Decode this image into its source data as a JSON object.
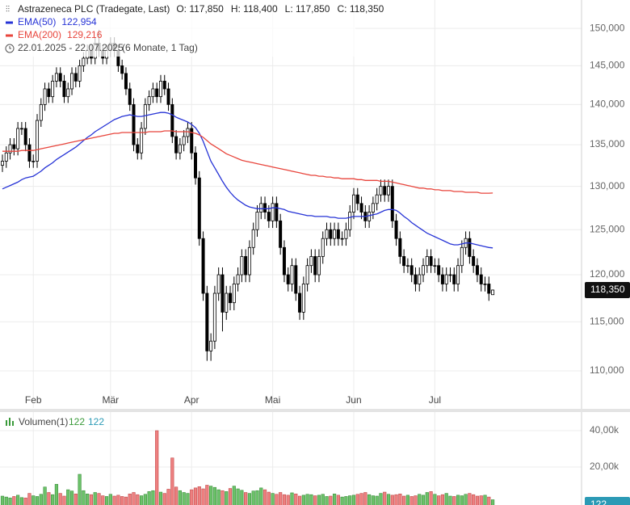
{
  "chart_data": {
    "type": "candlestick",
    "title": "Astrazeneca PLC (Tradegate, Last)",
    "quote": [
      "O: 117,850",
      "H: 118,400",
      "L: 117,850",
      "C: 118,350"
    ],
    "date_range": "22.01.2025 - 22.07.2025",
    "period": "(6 Monate, 1 Tag)",
    "log_scale": true,
    "grid": true,
    "up_fill": "#ffffff",
    "down_fill": "#000000",
    "candle_color": "#000000",
    "ylim": [
      106200,
      153900
    ],
    "yticks": [
      {
        "value": 110000,
        "label": "110,000"
      },
      {
        "value": 115000,
        "label": "115,000"
      },
      {
        "value": 120000,
        "label": "120,000"
      },
      {
        "value": 125000,
        "label": "125,000"
      },
      {
        "value": 130000,
        "label": "130,000"
      },
      {
        "value": 135000,
        "label": "135,000"
      },
      {
        "value": 140000,
        "label": "140,000"
      },
      {
        "value": 145000,
        "label": "145,000"
      },
      {
        "value": 150000,
        "label": "150,000"
      }
    ],
    "xticks": [
      {
        "value": 8,
        "label": "Feb"
      },
      {
        "value": 28,
        "label": "Mär"
      },
      {
        "value": 49,
        "label": "Apr"
      },
      {
        "value": 70,
        "label": "Mai"
      },
      {
        "value": 91,
        "label": "Jun"
      },
      {
        "value": 112,
        "label": "Jul"
      }
    ],
    "last_label": "118,350",
    "candles": [
      [
        132500,
        133800,
        131700,
        133000
      ],
      [
        133000,
        134800,
        132200,
        134000
      ],
      [
        134000,
        135800,
        133200,
        135000
      ],
      [
        135000,
        135800,
        133700,
        134500
      ],
      [
        134500,
        137800,
        133700,
        137000
      ],
      [
        137000,
        137800,
        136200,
        137000
      ],
      [
        137000,
        137800,
        134200,
        135000
      ],
      [
        135000,
        135800,
        132200,
        133000
      ],
      [
        133000,
        133800,
        132200,
        133000
      ],
      [
        133000,
        138800,
        132200,
        138000
      ],
      [
        138000,
        140800,
        137200,
        140000
      ],
      [
        140000,
        142800,
        139200,
        142000
      ],
      [
        142000,
        142800,
        140200,
        141000
      ],
      [
        141000,
        143800,
        140200,
        143000
      ],
      [
        143000,
        144800,
        142200,
        144000
      ],
      [
        144000,
        144800,
        142200,
        143000
      ],
      [
        143000,
        143800,
        140200,
        141000
      ],
      [
        141000,
        142800,
        140200,
        142000
      ],
      [
        142000,
        144800,
        141200,
        144000
      ],
      [
        144000,
        144800,
        142200,
        143000
      ],
      [
        143000,
        145800,
        142200,
        145000
      ],
      [
        145000,
        146800,
        144200,
        146000
      ],
      [
        146000,
        147800,
        145200,
        147000
      ],
      [
        147000,
        147800,
        145200,
        146000
      ],
      [
        146000,
        148800,
        145200,
        148000
      ],
      [
        148000,
        149800,
        146200,
        147000
      ],
      [
        147000,
        147800,
        145200,
        146000
      ],
      [
        146000,
        147800,
        145200,
        147000
      ],
      [
        147000,
        148800,
        146200,
        148000
      ],
      [
        148000,
        148800,
        146200,
        147000
      ],
      [
        147000,
        147800,
        144200,
        145000
      ],
      [
        145000,
        145800,
        143200,
        144000
      ],
      [
        144000,
        144800,
        141200,
        142000
      ],
      [
        142000,
        142800,
        139200,
        140000
      ],
      [
        140000,
        140800,
        134200,
        135000
      ],
      [
        135000,
        135800,
        133200,
        134000
      ],
      [
        134000,
        137800,
        133200,
        137000
      ],
      [
        137000,
        140800,
        136200,
        140000
      ],
      [
        140000,
        141800,
        139200,
        141000
      ],
      [
        141000,
        142800,
        140200,
        142000
      ],
      [
        142000,
        142800,
        140200,
        141000
      ],
      [
        141000,
        143800,
        140200,
        143000
      ],
      [
        143000,
        143800,
        141200,
        142000
      ],
      [
        142000,
        142800,
        139200,
        140000
      ],
      [
        140000,
        140800,
        135200,
        136000
      ],
      [
        136000,
        136800,
        133200,
        134000
      ],
      [
        134000,
        135800,
        133200,
        135000
      ],
      [
        135000,
        136800,
        134200,
        136000
      ],
      [
        136000,
        137800,
        135200,
        137000
      ],
      [
        137000,
        137800,
        133200,
        134000
      ],
      [
        134000,
        134800,
        130200,
        131000
      ],
      [
        131000,
        131800,
        123200,
        124000
      ],
      [
        124000,
        124800,
        117200,
        118000
      ],
      [
        118000,
        118800,
        111000,
        112000
      ],
      [
        112000,
        113800,
        111000,
        113000
      ],
      [
        113000,
        118800,
        112200,
        118000
      ],
      [
        118000,
        120800,
        117200,
        120000
      ],
      [
        120000,
        120800,
        114000,
        116000
      ],
      [
        116000,
        118800,
        115200,
        118000
      ],
      [
        118000,
        118800,
        116200,
        117000
      ],
      [
        117000,
        119800,
        116200,
        119000
      ],
      [
        119000,
        120800,
        118200,
        120000
      ],
      [
        120000,
        122800,
        119200,
        122000
      ],
      [
        122000,
        122800,
        119200,
        120000
      ],
      [
        120000,
        123800,
        119200,
        123000
      ],
      [
        123000,
        125800,
        122200,
        125000
      ],
      [
        125000,
        127800,
        124200,
        127000
      ],
      [
        127000,
        128800,
        126200,
        128000
      ],
      [
        128000,
        128800,
        126200,
        127000
      ],
      [
        127000,
        127800,
        125200,
        126000
      ],
      [
        126000,
        128800,
        125200,
        128000
      ],
      [
        128000,
        128800,
        125200,
        126000
      ],
      [
        126000,
        126800,
        122200,
        123000
      ],
      [
        123000,
        123800,
        119200,
        120000
      ],
      [
        120000,
        120800,
        118200,
        119000
      ],
      [
        119000,
        121800,
        118200,
        121000
      ],
      [
        121000,
        121800,
        117200,
        118000
      ],
      [
        118000,
        118800,
        115200,
        116000
      ],
      [
        116000,
        119800,
        115200,
        119000
      ],
      [
        119000,
        121800,
        118200,
        121000
      ],
      [
        121000,
        122800,
        120200,
        122000
      ],
      [
        122000,
        122800,
        119200,
        120000
      ],
      [
        120000,
        122800,
        119200,
        122000
      ],
      [
        122000,
        124800,
        121200,
        124000
      ],
      [
        124000,
        125800,
        123200,
        125000
      ],
      [
        125000,
        125800,
        123200,
        124000
      ],
      [
        124000,
        125800,
        123200,
        125000
      ],
      [
        125000,
        125800,
        123200,
        124000
      ],
      [
        124000,
        124800,
        123200,
        124000
      ],
      [
        124000,
        125800,
        123200,
        125000
      ],
      [
        125000,
        127800,
        124200,
        127000
      ],
      [
        127000,
        129800,
        126200,
        129000
      ],
      [
        129000,
        129800,
        127200,
        128000
      ],
      [
        128000,
        128800,
        126200,
        127000
      ],
      [
        127000,
        127800,
        125200,
        126000
      ],
      [
        126000,
        127800,
        125200,
        127000
      ],
      [
        127000,
        128800,
        126200,
        128000
      ],
      [
        128000,
        129800,
        127200,
        129000
      ],
      [
        129000,
        130800,
        128200,
        130000
      ],
      [
        130000,
        130800,
        128200,
        129000
      ],
      [
        129000,
        130800,
        128200,
        130000
      ],
      [
        130000,
        130800,
        125200,
        126000
      ],
      [
        126000,
        126800,
        123200,
        124000
      ],
      [
        124000,
        124800,
        121200,
        122000
      ],
      [
        122000,
        122800,
        120200,
        121000
      ],
      [
        121000,
        121800,
        120200,
        121000
      ],
      [
        121000,
        121800,
        119200,
        120000
      ],
      [
        120000,
        120800,
        118200,
        119000
      ],
      [
        119000,
        120800,
        118200,
        120000
      ],
      [
        120000,
        121800,
        119200,
        121000
      ],
      [
        121000,
        122800,
        120200,
        122000
      ],
      [
        122000,
        122800,
        120200,
        121000
      ],
      [
        121000,
        121800,
        120200,
        121000
      ],
      [
        121000,
        121800,
        119200,
        120000
      ],
      [
        120000,
        120800,
        118200,
        119000
      ],
      [
        119000,
        120800,
        118200,
        120000
      ],
      [
        120000,
        120800,
        119200,
        120000
      ],
      [
        120000,
        120800,
        118200,
        119000
      ],
      [
        119000,
        121800,
        118200,
        121000
      ],
      [
        121000,
        123800,
        120200,
        123000
      ],
      [
        123000,
        124800,
        122200,
        124000
      ],
      [
        124000,
        124800,
        121200,
        122000
      ],
      [
        122000,
        122800,
        120200,
        121000
      ],
      [
        121000,
        121800,
        119200,
        120000
      ],
      [
        120000,
        120800,
        118200,
        119000
      ],
      [
        119000,
        119800,
        118200,
        119000
      ],
      [
        119000,
        119800,
        117200,
        118000
      ],
      [
        117850,
        118400,
        117850,
        118350
      ]
    ],
    "series": [
      {
        "name": "EMA(50)",
        "color": "#2633d6",
        "last_label": "122,954",
        "values": [
          129700,
          129900,
          130100,
          130300,
          130500,
          130800,
          131000,
          131100,
          131200,
          131500,
          131800,
          132200,
          132500,
          132800,
          133200,
          133500,
          133800,
          134100,
          134400,
          134700,
          135100,
          135500,
          135900,
          136200,
          136600,
          136900,
          137200,
          137500,
          137800,
          138100,
          138300,
          138500,
          138600,
          138700,
          138600,
          138500,
          138500,
          138600,
          138700,
          138800,
          138900,
          139000,
          139000,
          138900,
          138700,
          138400,
          138200,
          138000,
          137800,
          137500,
          137100,
          136400,
          135400,
          134200,
          133000,
          132200,
          131400,
          130600,
          129900,
          129300,
          128800,
          128400,
          128100,
          127800,
          127600,
          127500,
          127400,
          127400,
          127400,
          127400,
          127500,
          127500,
          127400,
          127300,
          127100,
          127000,
          126900,
          126800,
          126700,
          126600,
          126600,
          126500,
          126500,
          126500,
          126500,
          126400,
          126400,
          126300,
          126300,
          126300,
          126400,
          126500,
          126500,
          126500,
          126500,
          126600,
          126700,
          126800,
          127000,
          127200,
          127300,
          127300,
          127200,
          126900,
          126500,
          126200,
          125800,
          125500,
          125200,
          124900,
          124600,
          124400,
          124200,
          124000,
          123800,
          123600,
          123400,
          123300,
          123300,
          123400,
          123500,
          123500,
          123400,
          123300,
          123200,
          123100,
          123000,
          122954
        ]
      },
      {
        "name": "EMA(200)",
        "color": "#e8453c",
        "last_label": "129,216",
        "values": [
          134200,
          134200,
          134200,
          134200,
          134200,
          134300,
          134300,
          134300,
          134300,
          134400,
          134500,
          134600,
          134700,
          134800,
          134900,
          135000,
          135100,
          135200,
          135300,
          135400,
          135500,
          135600,
          135700,
          135800,
          135900,
          136000,
          136100,
          136200,
          136300,
          136400,
          136400,
          136500,
          136500,
          136500,
          136500,
          136500,
          136500,
          136500,
          136600,
          136600,
          136600,
          136600,
          136700,
          136700,
          136700,
          136600,
          136600,
          136600,
          136600,
          136500,
          136400,
          136200,
          135900,
          135500,
          135100,
          134800,
          134500,
          134200,
          133900,
          133700,
          133500,
          133300,
          133100,
          133000,
          132900,
          132800,
          132700,
          132600,
          132500,
          132400,
          132300,
          132200,
          132100,
          132000,
          131900,
          131800,
          131700,
          131600,
          131500,
          131400,
          131300,
          131300,
          131200,
          131200,
          131100,
          131100,
          131000,
          131000,
          130900,
          130900,
          130900,
          130900,
          130800,
          130800,
          130700,
          130700,
          130700,
          130700,
          130600,
          130600,
          130600,
          130500,
          130400,
          130300,
          130200,
          130100,
          130000,
          129900,
          129800,
          129800,
          129700,
          129700,
          129600,
          129600,
          129500,
          129500,
          129500,
          129400,
          129400,
          129400,
          129300,
          129300,
          129300,
          129300,
          129200,
          129200,
          129200,
          129216
        ]
      }
    ],
    "volume": {
      "name": "Volumen(1)",
      "labels": [
        "122",
        "122"
      ],
      "badge": "122",
      "up_color": "#6cc26a",
      "down_color": "#ee8080",
      "ylim": [
        0,
        50000
      ],
      "yticks": [
        {
          "value": 20000,
          "label": "20,00k"
        },
        {
          "value": 40000,
          "label": "40,00k"
        }
      ],
      "values": [
        4000,
        3500,
        3000,
        3800,
        4500,
        3200,
        3000,
        5500,
        4200,
        3800,
        5000,
        9000,
        6000,
        4800,
        10500,
        5500,
        4000,
        7500,
        6800,
        5200,
        16000,
        7000,
        5200,
        4800,
        6000,
        5500,
        4200,
        3800,
        5000,
        4000,
        4500,
        3800,
        3500,
        5200,
        6000,
        4800,
        4200,
        5000,
        6500,
        7000,
        40000,
        6200,
        5500,
        7800,
        25000,
        9000,
        7000,
        6000,
        5500,
        7500,
        8500,
        9200,
        8000,
        10000,
        9500,
        8800,
        7500,
        7000,
        6500,
        8200,
        9500,
        8000,
        7200,
        6000,
        5500,
        6800,
        7000,
        8500,
        7500,
        6200,
        5500,
        5000,
        6000,
        4800,
        4500,
        5800,
        5200,
        4000,
        4500,
        5000,
        4800,
        4200,
        4500,
        5000,
        3800,
        4000,
        5200,
        4500,
        3500,
        3800,
        4200,
        4500,
        5000,
        5500,
        6000,
        4800,
        4200,
        4000,
        5500,
        6200,
        5000,
        4500,
        4800,
        5200,
        4000,
        4500,
        3800,
        4200,
        5000,
        4500,
        6000,
        6500,
        5000,
        4200,
        4800,
        5500,
        4000,
        3800,
        4500,
        4200,
        5000,
        5500,
        4800,
        4000,
        4200,
        4500,
        3500,
        2000
      ]
    }
  }
}
